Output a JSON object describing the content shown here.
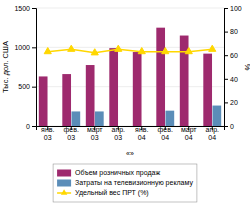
{
  "chart_data": {
    "type": "bar",
    "categories": [
      "янв.\n03",
      "фев.\n03",
      "март\n03",
      "апр.\n03",
      "янв.\n04",
      "фев.\n04",
      "март\n04",
      "апр.\n04"
    ],
    "series": [
      {
        "name": "Объем розничных продаж",
        "color": "#9e2a6e",
        "values": [
          630,
          660,
          775,
          990,
          940,
          1250,
          1150,
          920
        ]
      },
      {
        "name": "Затраты на телевизионную рекламу",
        "color": "#5b8db8",
        "values": [
          0,
          185,
          185,
          0,
          0,
          195,
          0,
          260
        ]
      },
      {
        "name": "Удельный вес ПРТ (%)",
        "color": "#ffd700",
        "type": "line",
        "marker": "triangle",
        "axis": "y2",
        "values": [
          63,
          65,
          62,
          65,
          63,
          63,
          63,
          65
        ]
      }
    ],
    "y_label": "Тыс. дол. США",
    "y2_label": "%",
    "ylim": [
      0,
      1500
    ],
    "yticks": [
      0,
      500,
      1000,
      1500
    ],
    "y2lim": [
      0,
      100
    ],
    "y2ticks": [
      0,
      20,
      40,
      60,
      80,
      100
    ],
    "grid": true,
    "legend": "bottom",
    "annotation": "«»"
  }
}
